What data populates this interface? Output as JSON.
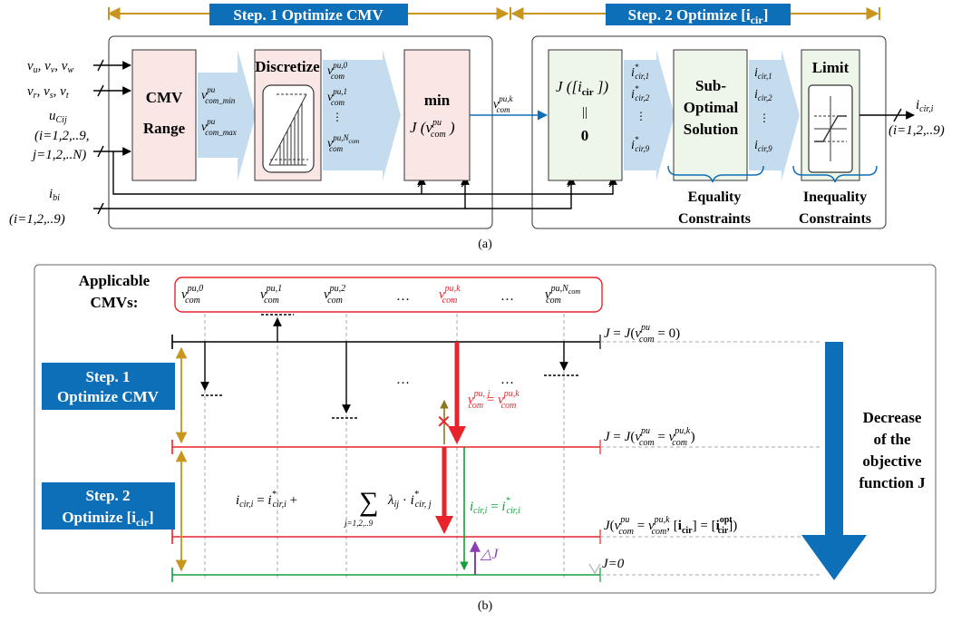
{
  "panel_a": {
    "label": "(a)",
    "step1": "Step. 1 Optimize CMV",
    "step2": "Step. 2 Optimize [i",
    "step2_sub": "cir",
    "step2_end": "]",
    "inputs": {
      "uvw": "v",
      "rst": "v",
      "uc": "u",
      "uc_idx": "(i=1,2,..9,",
      "uc_idx2": "j=1,2,..N)",
      "ib": "i",
      "ib_idx": "(i=1,2,..9)"
    },
    "blocks": {
      "cmv_range_1": "CMV",
      "cmv_range_2": "Range",
      "discretize": "Discretize",
      "min": "min",
      "min_fn": "J (v",
      "jcir_fn": "J ([i",
      "jcir_eq": "||",
      "jcir_zero": "0",
      "sub1": "Sub-",
      "sub2": "Optimal",
      "sub3": "Solution",
      "limit": "Limit"
    },
    "constraints": {
      "eq1": "Equality",
      "eq2": "Constraints",
      "ineq1": "Inequality",
      "ineq2": "Constraints"
    },
    "output_idx": "(i=1,2,..9)"
  },
  "panel_b": {
    "label": "(b)",
    "applicable": "Applicable",
    "cmvs": "CMVs:",
    "step1_a": "Step. 1",
    "step1_b": "Optimize CMV",
    "step2_a": "Step. 2",
    "step2_b": "Optimize [i",
    "step2_sub": "cir",
    "step2_end": "]",
    "dots": "…",
    "j_zero": "J=0",
    "delta_j": "△J",
    "decrease_1": "Decrease",
    "decrease_2": "of the",
    "decrease_3": "objective",
    "decrease_4": "function J",
    "sum_idx": "j=1,2,..9"
  },
  "colors": {
    "blue": "#0d6fb8",
    "light_blue": "#c5dcef",
    "pink": "#fbe6e6",
    "gold": "#c8961e",
    "red": "#e8242a",
    "green": "#14a03c",
    "purple": "#8c3fb4",
    "olive": "#8a7a1e"
  }
}
